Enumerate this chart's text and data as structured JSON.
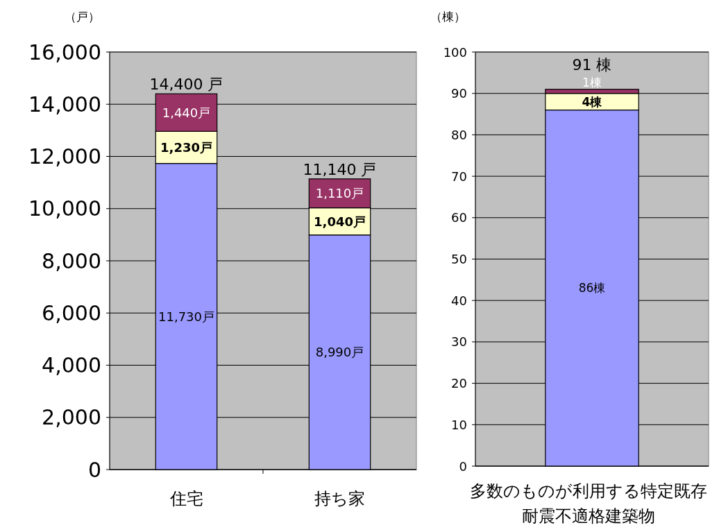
{
  "chart_data": [
    {
      "type": "bar",
      "stacked": true,
      "ylabel": "（戸）",
      "categories": [
        "住宅",
        "持ち家"
      ],
      "series": [
        {
          "color": "#9999ff",
          "values": [
            11730,
            8990
          ],
          "value_labels": [
            "11,730戸",
            "8,990戸"
          ]
        },
        {
          "color": "#ffffcc",
          "values": [
            1230,
            1040
          ],
          "value_labels": [
            "1,230戸",
            "1,040戸"
          ]
        },
        {
          "color": "#993366",
          "values": [
            1440,
            1110
          ],
          "value_labels": [
            "1,440戸",
            "1,110戸"
          ]
        }
      ],
      "totals": [
        "14,400 戸",
        "11,140 戸"
      ],
      "ylim": [
        0,
        16000
      ],
      "yticks": [
        0,
        {
          "value": 2000,
          "label": "2,000"
        },
        {
          "value": 4000,
          "label": "4,000"
        },
        {
          "value": 6000,
          "label": "6,000"
        },
        {
          "value": 8000,
          "label": "8,000"
        },
        {
          "value": 10000,
          "label": "10,000"
        },
        {
          "value": 12000,
          "label": "12,000"
        },
        {
          "value": 14000,
          "label": "14,000"
        },
        {
          "value": 16000,
          "label": "16,000"
        }
      ],
      "grid": "y"
    },
    {
      "type": "bar",
      "stacked": true,
      "ylabel": "（棟）",
      "categories": [
        "多数のものが利用する特定既存耐震不適格建築物"
      ],
      "series": [
        {
          "color": "#9999ff",
          "values": [
            86
          ],
          "value_labels": [
            "86棟"
          ]
        },
        {
          "color": "#ffffcc",
          "values": [
            4
          ],
          "value_labels": [
            "4棟"
          ]
        },
        {
          "color": "#993366",
          "values": [
            1
          ],
          "value_labels": [
            "1棟"
          ]
        }
      ],
      "totals": [
        "91 棟"
      ],
      "ylim": [
        0,
        100
      ],
      "yticks": [
        0,
        10,
        20,
        30,
        40,
        50,
        60,
        70,
        80,
        90,
        100
      ],
      "grid": "y"
    }
  ]
}
